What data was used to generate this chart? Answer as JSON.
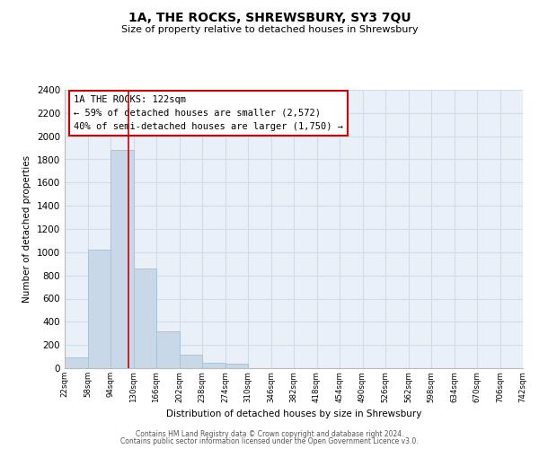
{
  "title": "1A, THE ROCKS, SHREWSBURY, SY3 7QU",
  "subtitle": "Size of property relative to detached houses in Shrewsbury",
  "xlabel": "Distribution of detached houses by size in Shrewsbury",
  "ylabel": "Number of detached properties",
  "bin_edges": [
    22,
    58,
    94,
    130,
    166,
    202,
    238,
    274,
    310,
    346,
    382,
    418,
    454,
    490,
    526,
    562,
    598,
    634,
    670,
    706,
    742
  ],
  "bar_heights": [
    90,
    1020,
    1880,
    860,
    320,
    115,
    50,
    35,
    0,
    0,
    0,
    0,
    0,
    0,
    0,
    0,
    0,
    0,
    0,
    0
  ],
  "bar_color": "#c8d8e8",
  "bar_edgecolor": "#a8c4d8",
  "vline_x": 122,
  "vline_color": "#cc0000",
  "ylim": [
    0,
    2400
  ],
  "yticks": [
    0,
    200,
    400,
    600,
    800,
    1000,
    1200,
    1400,
    1600,
    1800,
    2000,
    2200,
    2400
  ],
  "annotation_title": "1A THE ROCKS: 122sqm",
  "annotation_line1": "← 59% of detached houses are smaller (2,572)",
  "annotation_line2": "40% of semi-detached houses are larger (1,750) →",
  "footer1": "Contains HM Land Registry data © Crown copyright and database right 2024.",
  "footer2": "Contains public sector information licensed under the Open Government Licence v3.0.",
  "tick_labels": [
    "22sqm",
    "58sqm",
    "94sqm",
    "130sqm",
    "166sqm",
    "202sqm",
    "238sqm",
    "274sqm",
    "310sqm",
    "346sqm",
    "382sqm",
    "418sqm",
    "454sqm",
    "490sqm",
    "526sqm",
    "562sqm",
    "598sqm",
    "634sqm",
    "670sqm",
    "706sqm",
    "742sqm"
  ],
  "background_color": "#ffffff",
  "grid_color": "#d0dce8",
  "plot_bg_color": "#eaf0f8"
}
